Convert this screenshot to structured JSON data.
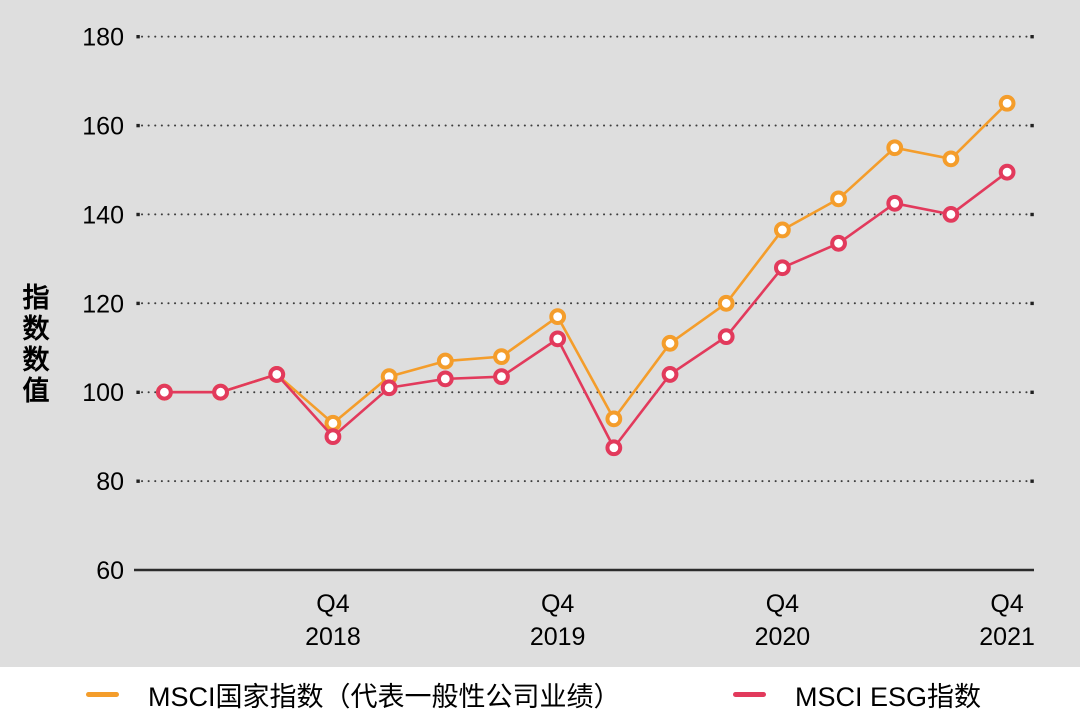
{
  "colors": {
    "panel_bg": "#dedede",
    "legend_bg": "#ffffff",
    "grid_dot": "#3d3d3d",
    "grid_end_dot": "#222222",
    "baseline": "#2b2b2b",
    "tick_text": "#000000",
    "marker_fill": "#ffffff",
    "series_country": "#f49d2b",
    "series_esg": "#e23a5c"
  },
  "chart": {
    "y_axis": {
      "title": "指数数值",
      "ticks": [
        180,
        160,
        140,
        120,
        100,
        80,
        60
      ],
      "min": 60,
      "max": 180
    },
    "x_axis": {
      "ticks": [
        {
          "index": 3,
          "line1": "Q4",
          "line2": "2018"
        },
        {
          "index": 7,
          "line1": "Q4",
          "line2": "2019"
        },
        {
          "index": 11,
          "line1": "Q4",
          "line2": "2020"
        },
        {
          "index": 15,
          "line1": "Q4",
          "line2": "2021"
        }
      ]
    }
  },
  "chart_data": {
    "type": "line",
    "x": [
      "2018 Q1",
      "2018 Q2",
      "2018 Q3",
      "2018 Q4",
      "2019 Q1",
      "2019 Q2",
      "2019 Q3",
      "2019 Q4",
      "2020 Q1",
      "2020 Q2",
      "2020 Q3",
      "2020 Q4",
      "2021 Q1",
      "2021 Q2",
      "2021 Q3",
      "2021 Q4"
    ],
    "series": [
      {
        "name": "MSCI国家指数（代表一般性公司业绩）",
        "color": "#f49d2b",
        "values": [
          100,
          100,
          104,
          93,
          103.5,
          107,
          108,
          117,
          94,
          111,
          120,
          136.5,
          143.5,
          155,
          152.5,
          165
        ]
      },
      {
        "name": "MSCI ESG指数",
        "color": "#e23a5c",
        "values": [
          100,
          100,
          104,
          90,
          101,
          103,
          103.5,
          112,
          87.5,
          104,
          112.5,
          128,
          133.5,
          142.5,
          140,
          149.5
        ]
      }
    ],
    "title": "",
    "xlabel": "",
    "ylabel": "指数数值",
    "ylim": [
      60,
      180
    ],
    "x_tick_labels": [
      "Q4 2018",
      "Q4 2019",
      "Q4 2020",
      "Q4 2021"
    ],
    "grid": "horizontal-dotted",
    "legend_position": "bottom"
  },
  "legend": {
    "items": [
      {
        "label": "MSCI国家指数（代表一般性公司业绩）",
        "color": "#f49d2b"
      },
      {
        "label": "MSCI ESG指数",
        "color": "#e23a5c"
      }
    ]
  }
}
